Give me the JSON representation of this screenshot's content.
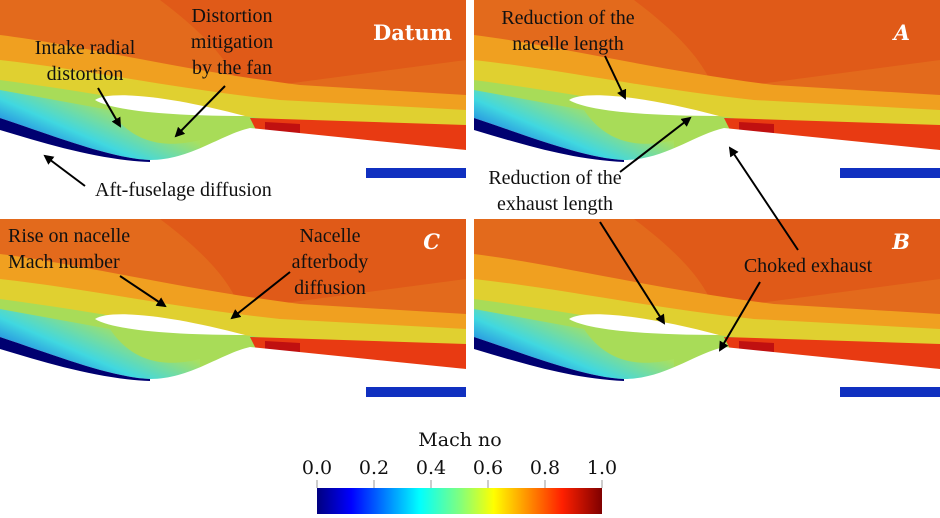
{
  "panels": [
    {
      "label": "Datum"
    },
    {
      "label": "A"
    },
    {
      "label": "C"
    },
    {
      "label": "B"
    }
  ],
  "annotations": [
    {
      "lines": [
        "Intake radial",
        "distortion"
      ]
    },
    {
      "lines": [
        "Distortion",
        "mitigation",
        "by the fan"
      ]
    },
    {
      "lines": [
        "Aft-fuselage diffusion"
      ]
    },
    {
      "lines": [
        "Reduction of the",
        "nacelle length"
      ]
    },
    {
      "lines": [
        "Reduction of the",
        "exhaust length"
      ]
    },
    {
      "lines": [
        "Choked exhaust"
      ]
    },
    {
      "lines": [
        "Rise on nacelle",
        "Mach number"
      ]
    },
    {
      "lines": [
        "Nacelle",
        "afterbody",
        "diffusion"
      ]
    }
  ],
  "colorbar": {
    "title": "Mach no",
    "ticks": [
      {
        "value": 0,
        "label": "0.0"
      },
      {
        "value": 0.2,
        "label": "0.2"
      },
      {
        "value": 0.4,
        "label": "0.4"
      },
      {
        "value": 0.6,
        "label": "0.6"
      },
      {
        "value": 0.8,
        "label": "0.8"
      },
      {
        "value": 1,
        "label": "1.0"
      }
    ]
  }
}
